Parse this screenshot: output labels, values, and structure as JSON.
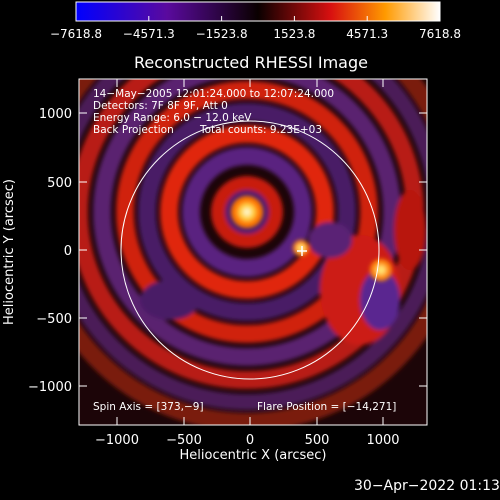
{
  "colorbar": {
    "ticks": [
      "−7618.8",
      "−4571.3",
      "−1523.8",
      "1523.8",
      "4571.3",
      "7618.8"
    ],
    "range": [
      -7618.8,
      7618.8
    ]
  },
  "plot": {
    "title": "Reconstructed RHESSI Image",
    "xlabel": "Heliocentric X (arcsec)",
    "ylabel": "Heliocentric Y (arcsec)",
    "xticks": [
      "−1000",
      "−500",
      "0",
      "500",
      "1000"
    ],
    "yticks": [
      "1000",
      "500",
      "0",
      "−500",
      "−1000"
    ],
    "xlim": [
      -1280,
      1280
    ],
    "ylim": [
      -1280,
      1280
    ],
    "tick_values": [
      -1000,
      -500,
      0,
      500,
      1000
    ],
    "solar_radius_arcsec": 950
  },
  "annotations": {
    "time_range": "14−May−2005 12:01:24.000 to 12:07:24.000",
    "detectors": "Detectors: 7F 8F 9F, Att 0",
    "energy": "Energy Range: 6.0 − 12.0 keV",
    "method": "Back Projection",
    "counts": "Total counts: 9.23E+03",
    "spin_axis": "Spin Axis = [373,−9]",
    "flare_position": "Flare Position = [−14,271]"
  },
  "sources": [
    {
      "x": -14,
      "y": 271
    },
    {
      "x": 385,
      "y": 5
    },
    {
      "x": 945,
      "y": -155
    }
  ],
  "timestamp": "30−Apr−2022 01:13"
}
